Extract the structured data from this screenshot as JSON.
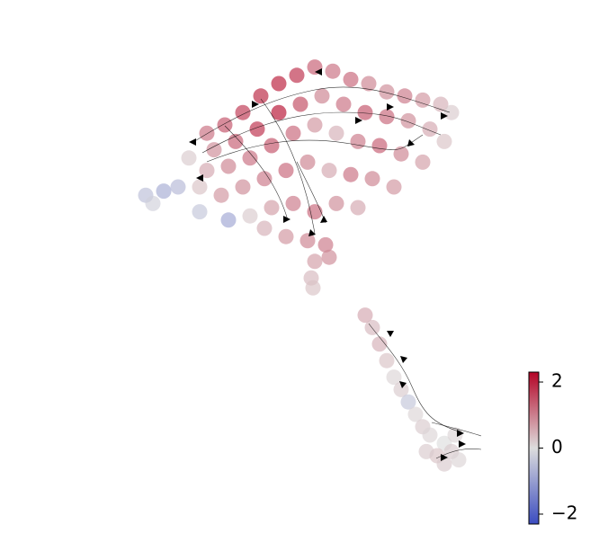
{
  "chart_data": {
    "type": "scatter",
    "x": [
      20,
      25,
      30,
      35,
      40,
      45,
      50,
      55,
      60,
      65,
      70,
      75,
      80,
      85,
      88,
      22,
      28,
      34,
      40,
      46,
      52,
      58,
      64,
      70,
      76,
      82,
      86,
      15,
      20,
      26,
      32,
      38,
      44,
      50,
      56,
      62,
      68,
      74,
      80,
      12,
      18,
      24,
      30,
      36,
      42,
      48,
      54,
      60,
      66,
      72,
      3,
      8,
      5,
      18,
      26,
      32,
      38,
      44,
      50,
      56,
      62,
      36,
      42,
      48,
      53,
      50,
      54,
      49,
      49.5,
      64,
      66,
      68,
      70,
      72,
      74,
      76,
      78,
      80,
      82,
      86,
      88,
      84,
      89,
      90,
      86,
      81
    ],
    "y": [
      83,
      85,
      88,
      92,
      95,
      97,
      99,
      98,
      96,
      95,
      93,
      92,
      91,
      90,
      88,
      79,
      81,
      84,
      88,
      90,
      92,
      90,
      88,
      87,
      86,
      84,
      81,
      77,
      74,
      75,
      77,
      80,
      83,
      85,
      83,
      81,
      80,
      78,
      76,
      70,
      70,
      68,
      70,
      72,
      74,
      76,
      74,
      73,
      72,
      70,
      68,
      69,
      66,
      64,
      62,
      63,
      65,
      66,
      64,
      66,
      65,
      60,
      58,
      57,
      56,
      52,
      53,
      48,
      45.6,
      39,
      36,
      32,
      28,
      24,
      21,
      18,
      15,
      12,
      10,
      8,
      6,
      5,
      10,
      4,
      3,
      6
    ],
    "values": [
      1.2,
      1.5,
      1.8,
      2.0,
      2.1,
      1.9,
      1.4,
      1.2,
      1.3,
      1.0,
      0.9,
      1.1,
      0.8,
      0.5,
      0.2,
      0.9,
      1.4,
      1.9,
      2.2,
      1.6,
      1.0,
      1.2,
      1.5,
      1.3,
      0.9,
      0.6,
      0.3,
      0.2,
      0.6,
      1.0,
      1.2,
      1.5,
      1.3,
      0.8,
      0.5,
      1.1,
      1.4,
      1.0,
      0.7,
      -0.6,
      0.3,
      0.8,
      0.9,
      1.1,
      1.3,
      1.0,
      0.6,
      1.2,
      1.0,
      0.8,
      -0.5,
      -0.8,
      -0.2,
      -0.4,
      -0.9,
      0.2,
      0.7,
      1.1,
      1.3,
      0.9,
      0.6,
      0.5,
      0.8,
      1.0,
      1.1,
      0.7,
      0.9,
      0.4,
      0.3,
      0.6,
      0.4,
      0.5,
      0.3,
      0.1,
      0.2,
      -0.4,
      0.1,
      0.2,
      0.1,
      0.0,
      0.2,
      0.3,
      0.1,
      0.1,
      0.2,
      0.2
    ],
    "xlim": [
      0,
      100
    ],
    "ylim": [
      0,
      100
    ],
    "clim": [
      -2.3,
      2.3
    ],
    "cticks": [
      {
        "value": -2,
        "label": "−2"
      },
      0,
      2
    ],
    "colormap": [
      "#3b4cc0",
      "#dddddd",
      "#b40426"
    ]
  }
}
